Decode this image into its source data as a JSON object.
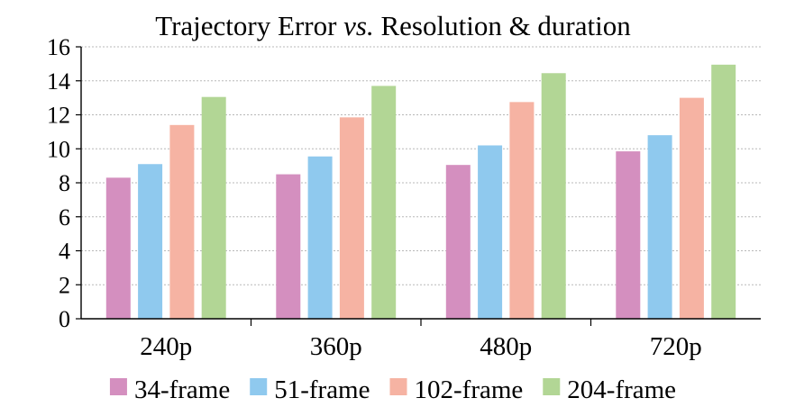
{
  "chart_data": {
    "type": "bar",
    "title_parts": [
      "Trajectory Error ",
      "vs.",
      " Resolution & duration"
    ],
    "categories": [
      "240p",
      "360p",
      "480p",
      "720p"
    ],
    "series": [
      {
        "name": "34-frame",
        "color": "#D48FBF",
        "values": [
          8.3,
          8.5,
          9.05,
          9.85
        ]
      },
      {
        "name": "51-frame",
        "color": "#8FC9EE",
        "values": [
          9.1,
          9.55,
          10.2,
          10.8
        ]
      },
      {
        "name": "102-frame",
        "color": "#F6B3A3",
        "values": [
          11.4,
          11.85,
          12.75,
          13.0
        ]
      },
      {
        "name": "204-frame",
        "color": "#B2D695",
        "values": [
          13.05,
          13.7,
          14.45,
          14.95
        ]
      }
    ],
    "yticks": [
      "0",
      "2",
      "4",
      "6",
      "8",
      "10",
      "12",
      "14",
      "16"
    ],
    "ylim": [
      0,
      16
    ],
    "grid": true,
    "legend_position": "bottom"
  }
}
